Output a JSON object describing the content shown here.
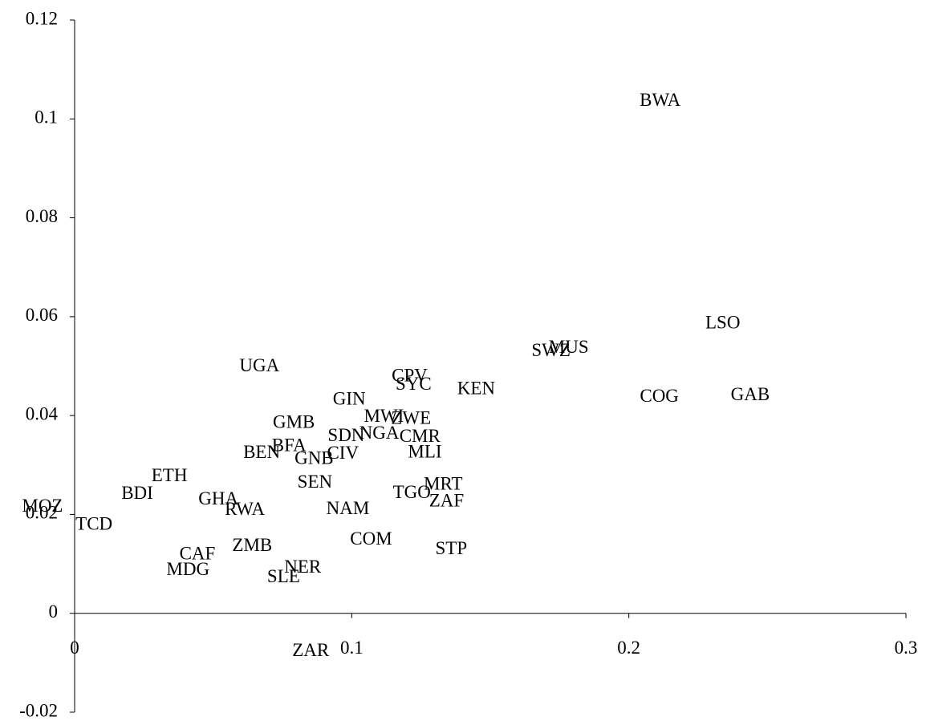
{
  "chart_data": {
    "type": "scatter",
    "labels": [
      "BWA",
      "LSO",
      "MUS",
      "SWZ",
      "GAB",
      "COG",
      "KEN",
      "CPV",
      "SYC",
      "UGA",
      "GIN",
      "GMB",
      "MWI",
      "ZWE",
      "SDN",
      "NGA",
      "CMR",
      "BFA",
      "BEN",
      "GNB",
      "CIV",
      "MLI",
      "ETH",
      "SEN",
      "MRT",
      "TGO",
      "ZAF",
      "BDI",
      "GHA",
      "RWA",
      "NAM",
      "MOZ",
      "TCD",
      "COM",
      "STP",
      "ZMB",
      "CAF",
      "NER",
      "MDG",
      "SLE",
      "ZAR"
    ],
    "x": [
      0.2113,
      0.2339,
      0.1783,
      0.1719,
      0.2438,
      0.211,
      0.1449,
      0.1209,
      0.1223,
      0.0667,
      0.0991,
      0.0791,
      0.1116,
      0.1214,
      0.098,
      0.1099,
      0.1246,
      0.0774,
      0.0675,
      0.0864,
      0.0968,
      0.1264,
      0.0342,
      0.0867,
      0.133,
      0.1217,
      0.1342,
      0.0226,
      0.0519,
      0.0614,
      0.0986,
      -0.0116,
      0.007,
      0.107,
      0.1359,
      0.0641,
      0.0443,
      0.0823,
      0.0409,
      0.0754,
      0.0852
    ],
    "y": [
      0.1035,
      0.0585,
      0.0535,
      0.0529,
      0.044,
      0.0436,
      0.0452,
      0.0478,
      0.0461,
      0.0498,
      0.0431,
      0.0384,
      0.0396,
      0.0392,
      0.0357,
      0.0362,
      0.0355,
      0.0337,
      0.0323,
      0.0311,
      0.0321,
      0.0324,
      0.0276,
      0.0263,
      0.0259,
      0.0242,
      0.0225,
      0.024,
      0.0229,
      0.0208,
      0.0209,
      0.0214,
      0.0178,
      0.0148,
      0.0128,
      0.0135,
      0.0118,
      0.0091,
      0.0086,
      0.0071,
      -0.0078
    ],
    "xlim": [
      0,
      0.3
    ],
    "xticks": [
      0,
      0.1,
      0.2,
      0.3
    ],
    "ylim": [
      -0.02,
      0.12
    ],
    "yticks": [
      -0.02,
      0,
      0.02,
      0.04,
      0.06,
      0.08,
      0.1,
      0.12
    ]
  }
}
